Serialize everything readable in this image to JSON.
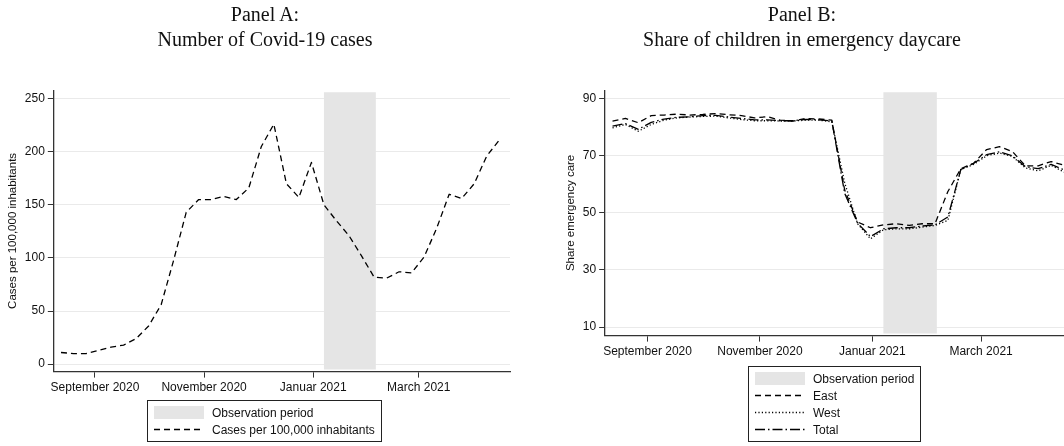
{
  "chart_data": [
    {
      "type": "line",
      "title": "Panel A:",
      "subtitle": "Number of Covid-19 cases",
      "ylabel": "Cases per 100,000 inhabitants",
      "x": [
        "2020-08-13",
        "2020-08-20",
        "2020-08-27",
        "2020-09-03",
        "2020-09-10",
        "2020-09-17",
        "2020-09-24",
        "2020-10-01",
        "2020-10-08",
        "2020-10-15",
        "2020-10-22",
        "2020-10-29",
        "2020-11-05",
        "2020-11-12",
        "2020-11-19",
        "2020-11-26",
        "2020-12-03",
        "2020-12-10",
        "2020-12-17",
        "2020-12-24",
        "2020-12-31",
        "2021-01-07",
        "2021-01-14",
        "2021-01-21",
        "2021-01-28",
        "2021-02-04",
        "2021-02-11",
        "2021-02-18",
        "2021-02-25",
        "2021-03-04",
        "2021-03-11",
        "2021-03-18",
        "2021-03-25",
        "2021-04-01",
        "2021-04-08",
        "2021-04-15"
      ],
      "series": [
        {
          "name": "Cases per 100,000 inhabitants",
          "color": "#000000",
          "line_style": "dashed",
          "values": [
            11,
            10,
            10,
            13,
            16,
            18,
            24,
            36,
            56,
            98,
            143,
            155,
            155,
            158,
            155,
            166,
            205,
            226,
            170,
            157,
            190,
            150,
            135,
            121,
            102,
            82,
            81,
            87,
            86,
            101,
            128,
            160,
            156,
            170,
            196,
            211
          ]
        }
      ],
      "bands": [
        {
          "axis": "x",
          "from": "2021-01-07",
          "to": "2021-02-05",
          "label": "Observation period",
          "color": "#e5e5e5"
        }
      ],
      "xlim": [
        "2020-08-09",
        "2021-04-21"
      ],
      "xticks": [
        {
          "value": "2020-09-01",
          "label": "September 2020"
        },
        {
          "value": "2020-11-01",
          "label": "November 2020"
        },
        {
          "value": "2021-01-01",
          "label": "Januar 2021"
        },
        {
          "value": "2021-03-01",
          "label": "March 2021"
        }
      ],
      "ylim": [
        -7,
        258
      ],
      "yticks": [
        0,
        50,
        100,
        150,
        200,
        250
      ],
      "grid": "y",
      "legend": "bottom",
      "marker": "none"
    },
    {
      "type": "line",
      "title": "Panel B:",
      "subtitle": "Share of children in emergency daycare",
      "ylabel": "Share emergency care",
      "x": [
        "2020-08-13",
        "2020-08-20",
        "2020-08-27",
        "2020-09-03",
        "2020-09-10",
        "2020-09-17",
        "2020-09-24",
        "2020-10-01",
        "2020-10-08",
        "2020-10-15",
        "2020-10-22",
        "2020-10-29",
        "2020-11-05",
        "2020-11-12",
        "2020-11-19",
        "2020-11-26",
        "2020-12-03",
        "2020-12-10",
        "2020-12-17",
        "2020-12-24",
        "2020-12-31",
        "2021-01-07",
        "2021-01-14",
        "2021-01-21",
        "2021-01-28",
        "2021-02-04",
        "2021-02-11",
        "2021-02-18",
        "2021-02-25",
        "2021-03-04",
        "2021-03-11",
        "2021-03-18",
        "2021-03-25",
        "2021-04-01",
        "2021-04-08",
        "2021-04-15"
      ],
      "series": [
        {
          "name": "East",
          "color": "#000000",
          "line_style": "dashed",
          "values": [
            82.2,
            83.1,
            81.6,
            84.1,
            84.3,
            84.6,
            84.3,
            84.5,
            84.8,
            84.4,
            84.1,
            83.3,
            83.7,
            82.5,
            82.2,
            83.1,
            82.9,
            82.5,
            58,
            46.8,
            44.8,
            45.8,
            46.2,
            45.6,
            46.2,
            46.2,
            57.5,
            65.5,
            67.4,
            72.2,
            73.2,
            71.5,
            66.5,
            66.5,
            68,
            66.7
          ]
        },
        {
          "name": "West",
          "color": "#000000",
          "line_style": "dotted",
          "values": [
            79.8,
            81,
            78.6,
            81,
            82.5,
            83.3,
            83.6,
            83.8,
            83.9,
            83.3,
            82.7,
            82.3,
            82.3,
            82.2,
            82.2,
            82.5,
            82.5,
            81.9,
            60.5,
            46.2,
            40.9,
            44.1,
            44.4,
            44.4,
            45,
            45.6,
            47.4,
            65.2,
            67,
            70,
            71,
            69.8,
            65.8,
            64.7,
            66.7,
            64.3
          ]
        },
        {
          "name": "Total",
          "color": "#000000",
          "line_style": "dashdot",
          "values": [
            80.4,
            81.3,
            79.3,
            81.7,
            82.9,
            83.5,
            83.7,
            84.1,
            84.2,
            83.6,
            83.1,
            82.6,
            82.6,
            82.3,
            82.3,
            82.8,
            82.6,
            82.2,
            56.8,
            46.4,
            41.7,
            44.4,
            44.8,
            44.8,
            45.4,
            45.8,
            48.6,
            65.2,
            67.4,
            70.4,
            71.4,
            70,
            66.2,
            65.5,
            67,
            65.1
          ]
        }
      ],
      "bands": [
        {
          "axis": "x",
          "from": "2021-01-07",
          "to": "2021-02-05",
          "label": "Observation period",
          "color": "#e5e5e5"
        }
      ],
      "xlim": [
        "2020-08-09",
        "2021-04-15"
      ],
      "xticks": [
        {
          "value": "2020-09-01",
          "label": "September 2020"
        },
        {
          "value": "2020-11-01",
          "label": "November 2020"
        },
        {
          "value": "2021-01-01",
          "label": "Januar 2021"
        },
        {
          "value": "2021-03-01",
          "label": "March 2021"
        }
      ],
      "ylim": [
        7,
        93
      ],
      "yticks": [
        10,
        30,
        50,
        70,
        90
      ],
      "grid": "y",
      "legend": "bottom",
      "marker": "none"
    }
  ]
}
